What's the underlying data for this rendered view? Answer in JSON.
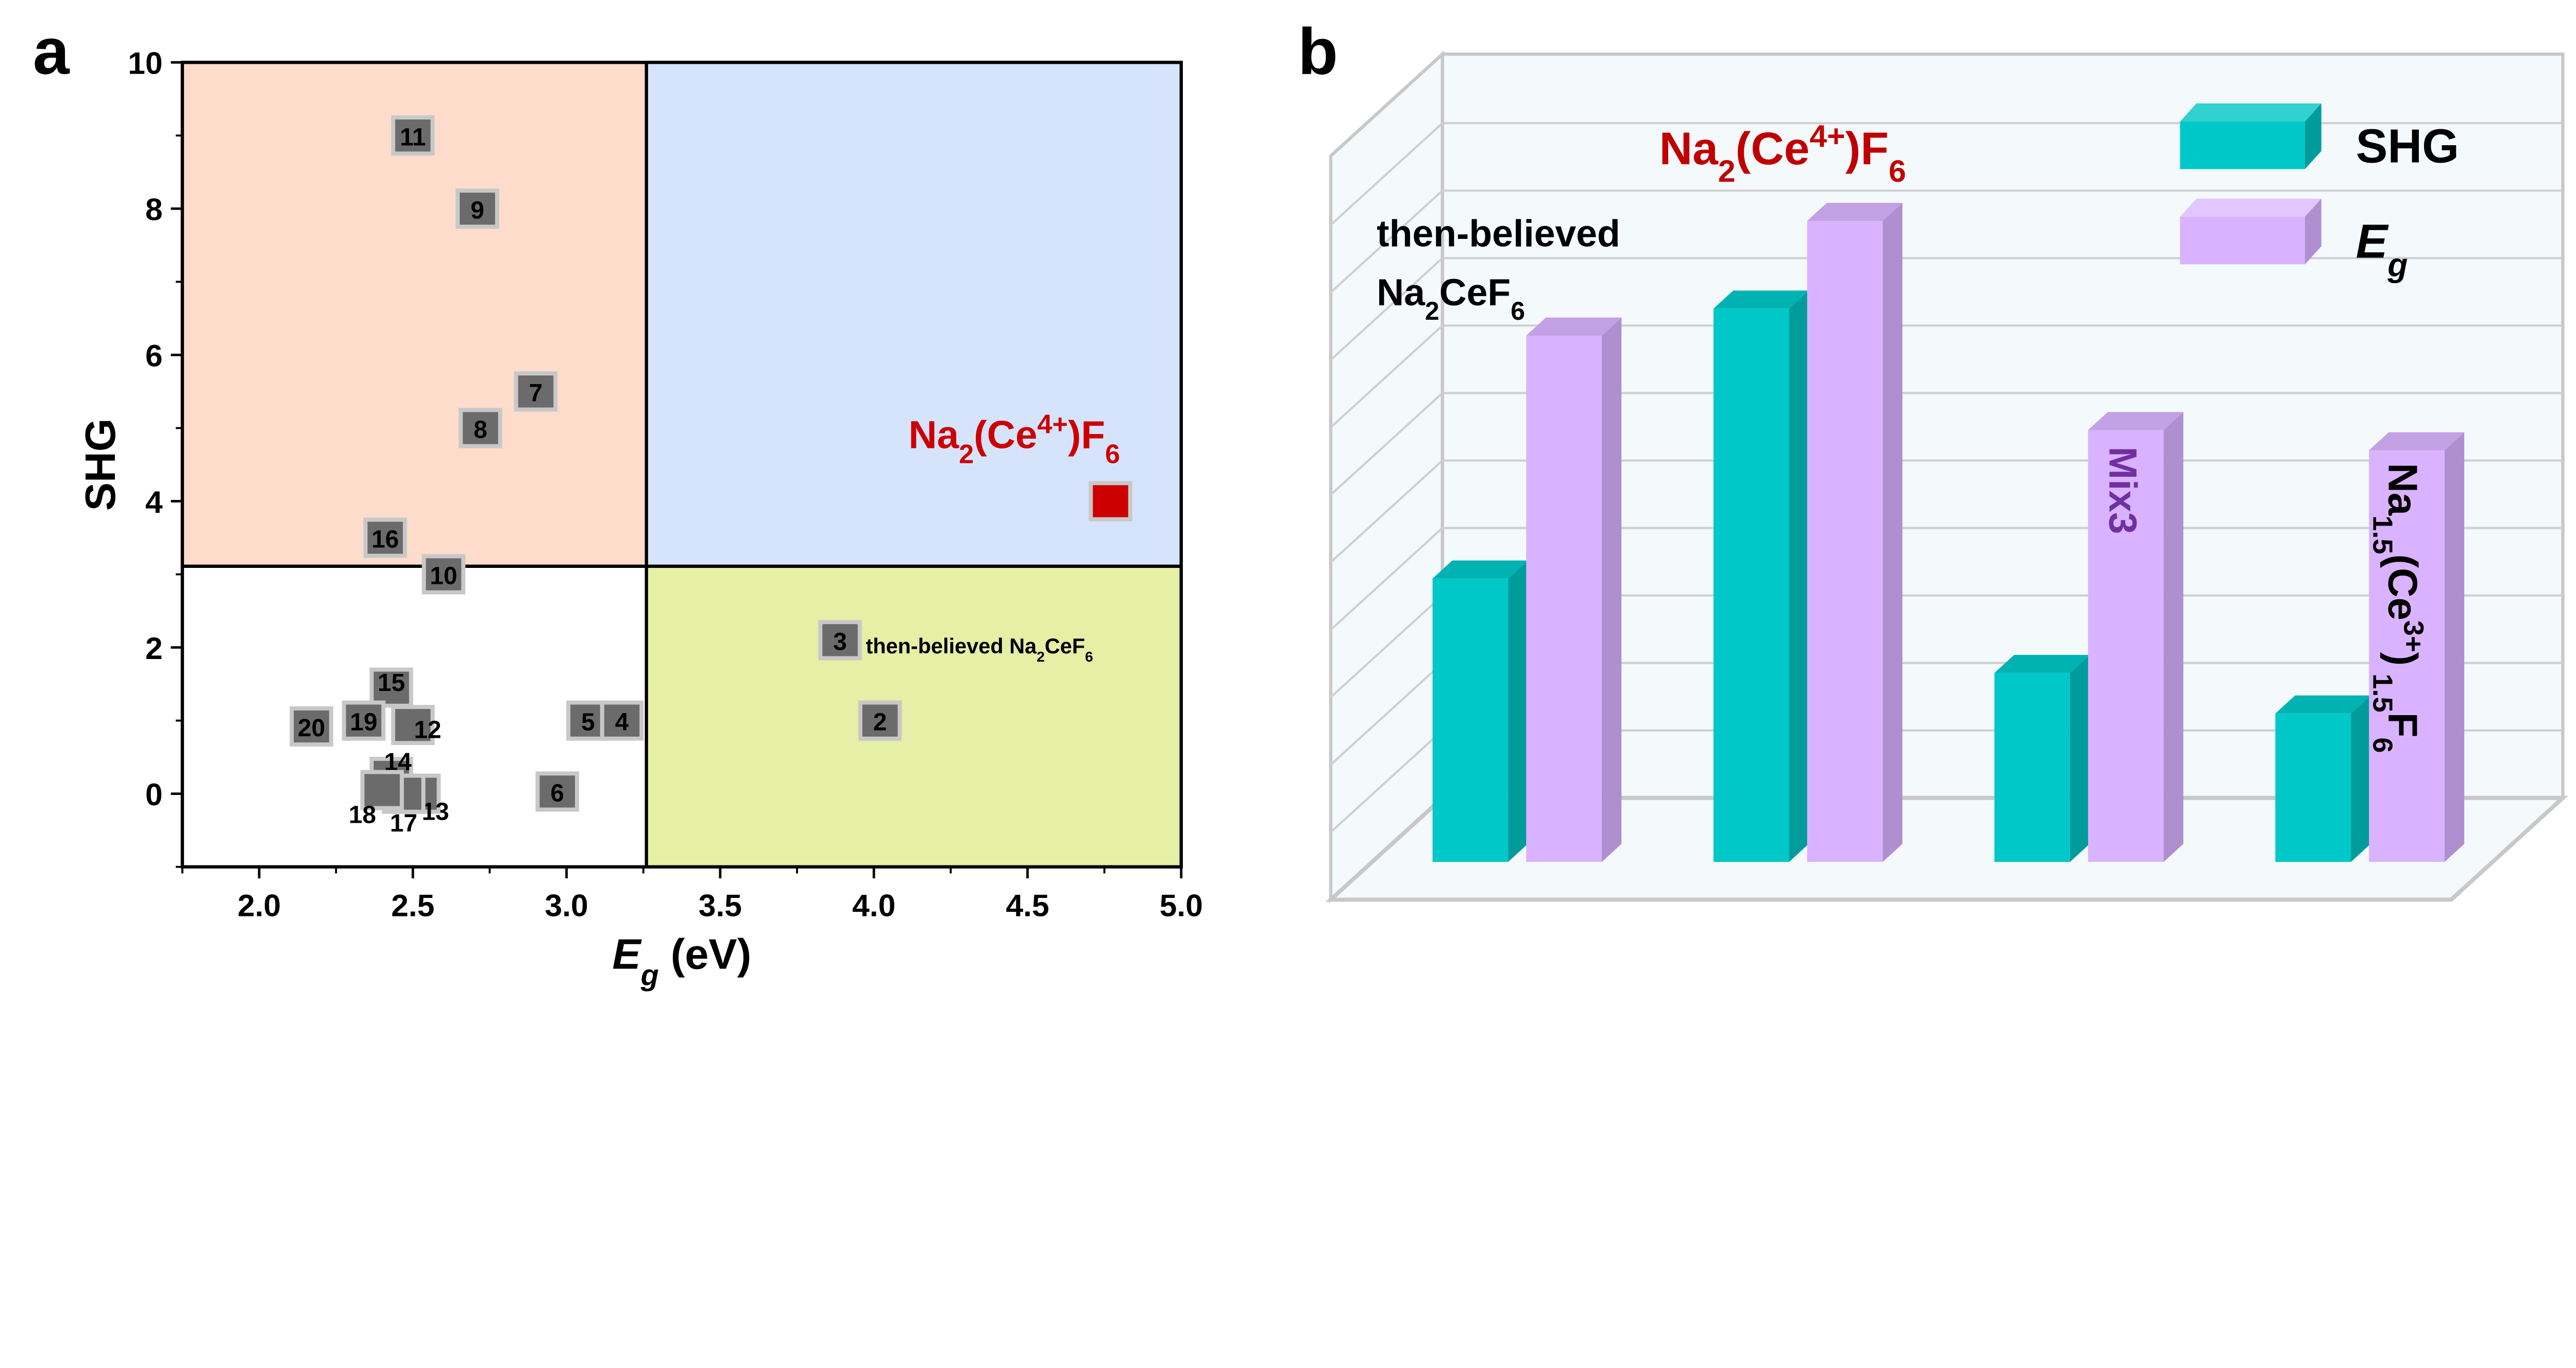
{
  "chart_data": [
    {
      "panel_label": "a",
      "type": "scatter",
      "xlabel": {
        "main": "E",
        "sub": "g",
        "rest": " (eV)"
      },
      "ylabel": "SHG",
      "xlim": [
        1.75,
        5.0
      ],
      "ylim": [
        -1,
        10
      ],
      "xticks": [
        "2.0",
        "2.5",
        "3.0",
        "3.5",
        "4.0",
        "4.5",
        "5.0"
      ],
      "yticks": [
        "0",
        "2",
        "4",
        "6",
        "8",
        "10"
      ],
      "grid": false,
      "dividers": {
        "x": 3.26,
        "y": 3.11
      },
      "regions": {
        "top_left": "#fddccb",
        "top_right": "#d6e4fb",
        "bottom_right": "#e5efa6",
        "bottom_left": "#ffffff"
      },
      "points": [
        {
          "label": "11",
          "x": 2.5,
          "y": 9.0
        },
        {
          "label": "9",
          "x": 2.71,
          "y": 8.0
        },
        {
          "label": "7",
          "x": 2.9,
          "y": 5.5
        },
        {
          "label": "8",
          "x": 2.72,
          "y": 5.0
        },
        {
          "label": "16",
          "x": 2.41,
          "y": 3.5
        },
        {
          "label": "10",
          "x": 2.6,
          "y": 3.0
        },
        {
          "label": "3",
          "x": 3.89,
          "y": 2.1
        },
        {
          "label": "2",
          "x": 4.02,
          "y": 1.0
        },
        {
          "label": "15",
          "x": 2.43,
          "y": 1.45
        },
        {
          "label": "20",
          "x": 2.17,
          "y": 0.92
        },
        {
          "label": "19",
          "x": 2.34,
          "y": 1.0
        },
        {
          "label": "12",
          "x": 2.5,
          "y": 0.94
        },
        {
          "label": "5",
          "x": 3.07,
          "y": 1.0
        },
        {
          "label": "4",
          "x": 3.18,
          "y": 1.0
        },
        {
          "label": "14",
          "x": 2.43,
          "y": 0.23
        },
        {
          "label": "13",
          "x": 2.52,
          "y": 0.0
        },
        {
          "label": "17",
          "x": 2.47,
          "y": 0.0
        },
        {
          "label": "18",
          "x": 2.4,
          "y": 0.05
        },
        {
          "label": "6",
          "x": 2.97,
          "y": 0.03
        },
        {
          "label": "",
          "x": 4.77,
          "y": 4.0,
          "highlight": true
        }
      ],
      "marker_color": "#6b6b6b",
      "highlight_color": "#cc0000",
      "annotations": [
        {
          "text_parts": [
            {
              "t": "Na"
            },
            {
              "t": "2",
              "sub": true
            },
            {
              "t": "(Ce"
            },
            {
              "t": "4+",
              "sup": true
            },
            {
              "t": ")F"
            },
            {
              "t": "6",
              "sub": true
            }
          ],
          "color": "#cc0000"
        },
        {
          "text_parts": [
            {
              "t": "then-believed Na"
            },
            {
              "t": "2",
              "sub": true
            },
            {
              "t": "CeF"
            },
            {
              "t": "6",
              "sub": true
            }
          ],
          "color": "#000000"
        }
      ]
    },
    {
      "panel_label": "b",
      "type": "bar",
      "style": "3d",
      "axis_values_shown": false,
      "note": "",
      "categories": [
        {
          "parts": [
            {
              "t": "then-believed"
            }
          ]
        },
        {
          "parts": [
            {
              "t": "Na"
            },
            {
              "t": "2",
              "sub": true
            },
            {
              "t": "(Ce"
            },
            {
              "t": "4+",
              "sup": true
            },
            {
              "t": ")F"
            },
            {
              "t": "6",
              "sub": true
            }
          ]
        },
        {
          "parts": [
            {
              "t": "Mix3"
            }
          ]
        },
        {
          "parts": [
            {
              "t": "Na"
            },
            {
              "t": "1.5",
              "sub": true
            },
            {
              "t": "(Ce"
            },
            {
              "t": "3+",
              "sup": true
            },
            {
              "t": ")"
            },
            {
              "t": " 1.5",
              "sub": true
            },
            {
              "t": "F"
            },
            {
              "t": "6",
              "sub": true
            }
          ]
        }
      ],
      "category_label_2": {
        "parts": [
          {
            "t": "Na"
          },
          {
            "t": "2",
            "sub": true
          },
          {
            "t": "CeF"
          },
          {
            "t": "6",
            "sub": true
          }
        ]
      },
      "category_colors": [
        "#000000",
        "#c00000",
        "#7030a0",
        "#000000"
      ],
      "series": [
        {
          "name": "SHG",
          "values": [
            4.2,
            8.2,
            2.8,
            2.2
          ],
          "color": "#00c8c8"
        },
        {
          "name": "E",
          "name_sub": "g",
          "values": [
            7.8,
            9.5,
            6.4,
            6.1
          ],
          "color": "#d9b3ff"
        }
      ],
      "value_units": "relative (gridline units, axis unlabeled)",
      "grid": true,
      "legend": "top-right"
    }
  ]
}
